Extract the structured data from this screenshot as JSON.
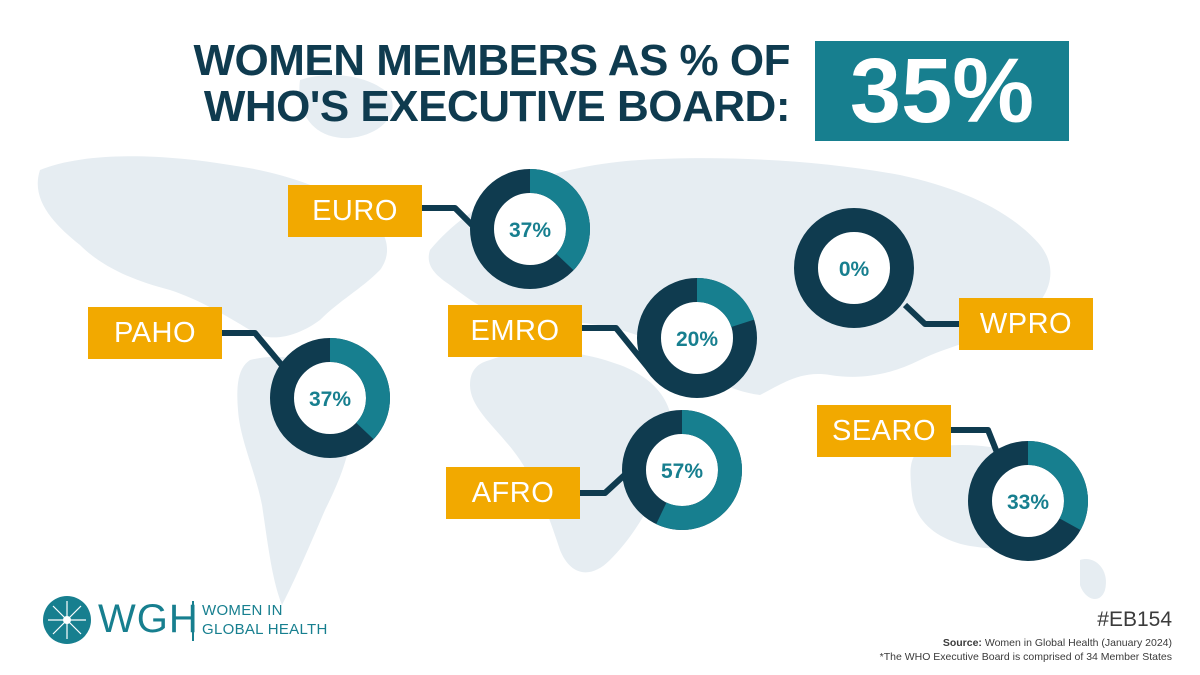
{
  "title": {
    "line1": "WOMEN MEMBERS AS % OF",
    "line2": "WHO'S EXECUTIVE BOARD:"
  },
  "overall_value": "35%",
  "colors": {
    "navy": "#0f3b4f",
    "teal": "#177f8f",
    "orange": "#f2a900",
    "map": "#e6edf2"
  },
  "chart_data": {
    "type": "pie",
    "variant": "donut",
    "series": [
      {
        "name": "EURO",
        "value": 37,
        "label": "37%"
      },
      {
        "name": "PAHO",
        "value": 37,
        "label": "37%"
      },
      {
        "name": "EMRO",
        "value": 20,
        "label": "20%"
      },
      {
        "name": "AFRO",
        "value": 57,
        "label": "57%"
      },
      {
        "name": "WPRO",
        "value": 0,
        "label": "0%"
      },
      {
        "name": "SEARO",
        "value": 33,
        "label": "33%"
      }
    ]
  },
  "logo": {
    "abbr": "WGH",
    "line1": "WOMEN IN",
    "line2": "GLOBAL HEALTH"
  },
  "hashtag": "#EB154",
  "source": {
    "label": "Source:",
    "text": "Women in Global Health (January 2024)",
    "note": "*The WHO Executive Board is comprised of 34 Member States"
  }
}
